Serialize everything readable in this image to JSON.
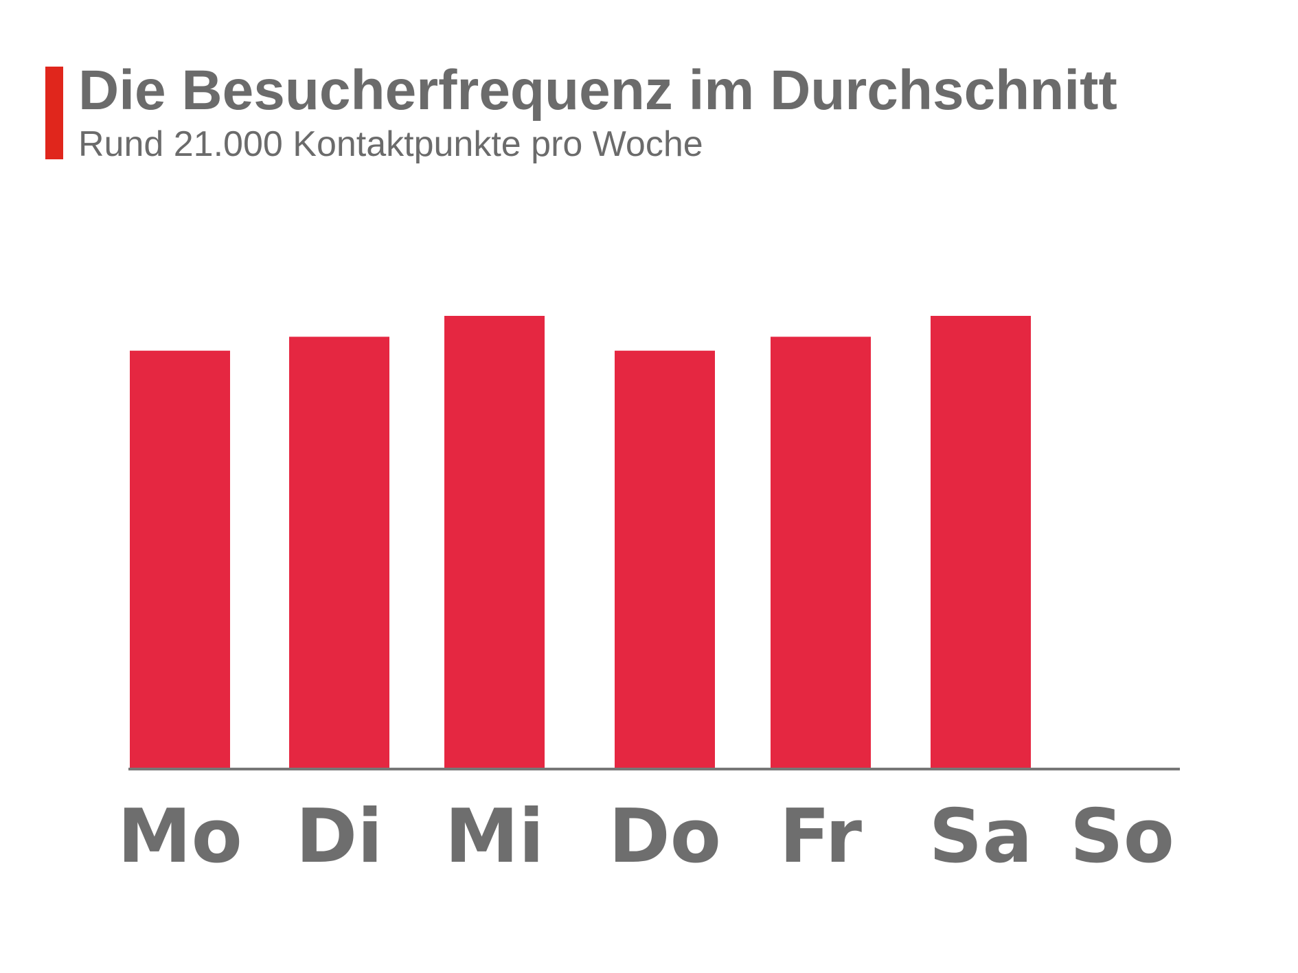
{
  "header": {
    "title": "Die Besucherfrequenz im Durchschnitt",
    "subtitle": "Rund 21.000 Kontaktpunkte pro Woche"
  },
  "colors": {
    "accent": "#e0261c",
    "bar": "#e52741",
    "text": "#6b6b6b",
    "axis": "#777777"
  },
  "chart_data": {
    "type": "bar",
    "title": "Die Besucherfrequenz im Durchschnitt",
    "subtitle": "Rund 21.000 Kontaktpunkte pro Woche",
    "categories": [
      "Mo",
      "Di",
      "Mi",
      "Do",
      "Fr",
      "Sa",
      "So"
    ],
    "values": [
      3000,
      3100,
      3250,
      3000,
      3100,
      3250,
      0
    ],
    "xlabel": "",
    "ylabel": "",
    "ylim": [
      0,
      3250
    ],
    "grid": false,
    "legend": "none"
  }
}
